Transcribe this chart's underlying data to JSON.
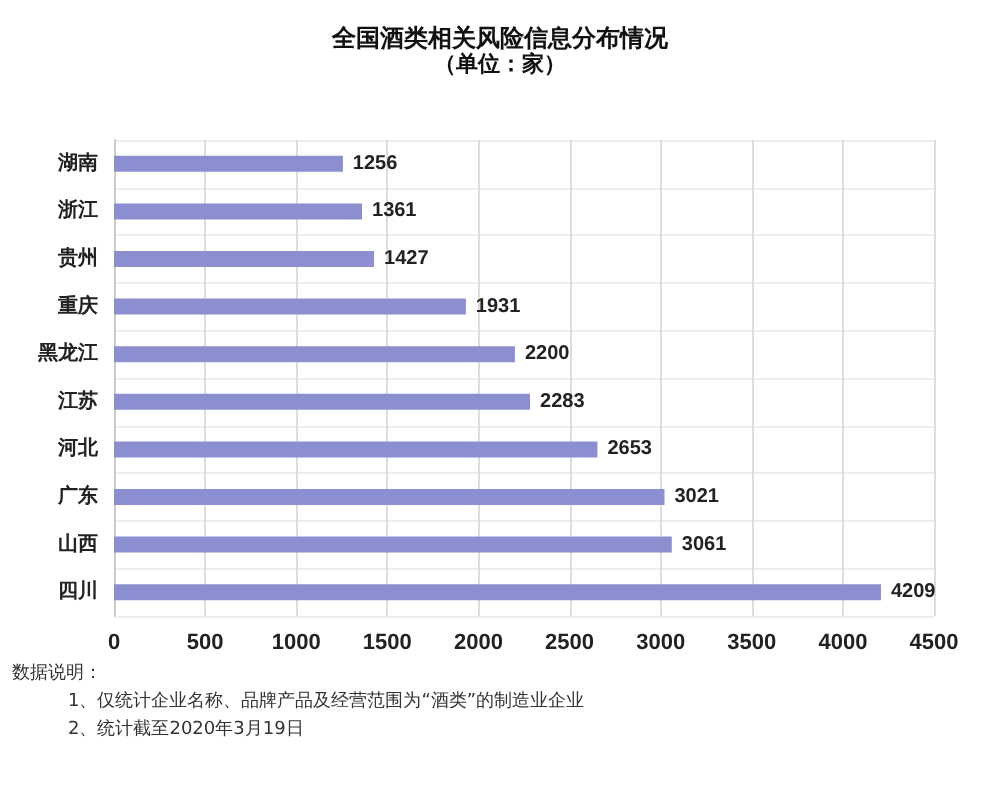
{
  "chart_data": {
    "type": "bar",
    "orientation": "horizontal",
    "title": "全国酒类相关风险信息分布情况",
    "subtitle": "（单位：家）",
    "categories": [
      "湖南",
      "浙江",
      "贵州",
      "重庆",
      "黑龙江",
      "江苏",
      "河北",
      "广东",
      "山西",
      "四川"
    ],
    "values": [
      1256,
      1361,
      1427,
      1931,
      2200,
      2283,
      2653,
      3021,
      3061,
      4209
    ],
    "color": "#8b8fcf",
    "data_labels": true,
    "xlim": [
      0,
      4500
    ],
    "xticks": [
      0,
      500,
      1000,
      1500,
      2000,
      2500,
      3000,
      3500,
      4000,
      4500
    ],
    "grid": true,
    "annotations": [
      "数据说明：",
      "1、仅统计企业名称、品牌产品及经营范围为“酒类”的制造业企业",
      "2、统计截至2020年3月19日"
    ]
  }
}
